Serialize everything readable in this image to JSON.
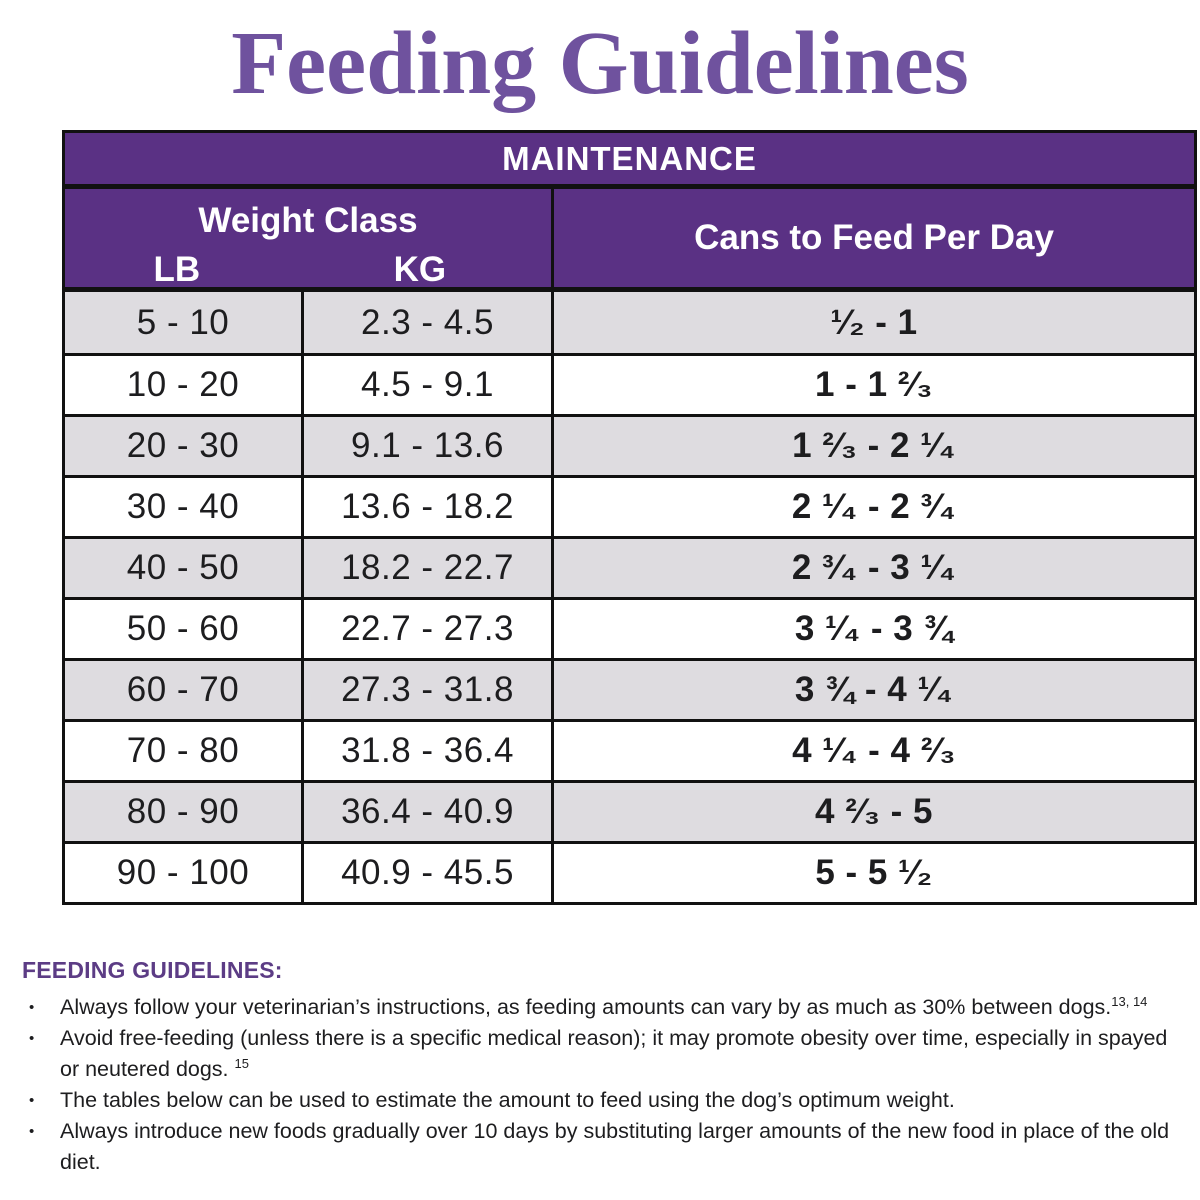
{
  "page_title": "Feeding Guidelines",
  "colors": {
    "brand_purple": "#5a3184",
    "title_purple": "#6f529e",
    "footer_heading_purple": "#5c3c85",
    "row_alt_gray": "#dedce0",
    "border_black": "#111111",
    "header_text": "#ffffff",
    "body_text": "#1d1d1f"
  },
  "table": {
    "maintenance_header": "MAINTENANCE",
    "weight_class_header": "Weight Class",
    "lb_header": "LB",
    "kg_header": "KG",
    "cans_header": "Cans to Feed Per Day",
    "rows": [
      {
        "lb": "5 - 10",
        "kg": "2.3 - 4.5",
        "cans": "¹⁄₂ - 1"
      },
      {
        "lb": "10 - 20",
        "kg": "4.5 - 9.1",
        "cans": "1 - 1 ²⁄₃"
      },
      {
        "lb": "20 - 30",
        "kg": "9.1 - 13.6",
        "cans": "1 ²⁄₃ - 2 ¹⁄₄"
      },
      {
        "lb": "30 - 40",
        "kg": "13.6 - 18.2",
        "cans": "2 ¹⁄₄ - 2 ³⁄₄"
      },
      {
        "lb": "40 - 50",
        "kg": "18.2 - 22.7",
        "cans": "2 ³⁄₄ - 3 ¹⁄₄"
      },
      {
        "lb": "50 - 60",
        "kg": "22.7 - 27.3",
        "cans": "3 ¹⁄₄ - 3 ¾"
      },
      {
        "lb": "60 - 70",
        "kg": "27.3 - 31.8",
        "cans": "3 ¾ - 4 ¹⁄₄"
      },
      {
        "lb": "70 - 80",
        "kg": "31.8 - 36.4",
        "cans": "4 ¹⁄₄ - 4 ²⁄₃"
      },
      {
        "lb": "80 - 90",
        "kg": "36.4 - 40.9",
        "cans": "4 ²⁄₃ - 5"
      },
      {
        "lb": "90 - 100",
        "kg": "40.9 - 45.5",
        "cans": "5 - 5 ¹⁄₂"
      }
    ]
  },
  "footer": {
    "heading": "FEEDING GUIDELINES:",
    "bullet_glyph": "•",
    "bullets": [
      {
        "text": "Always follow your veterinarian’s instructions, as feeding amounts can vary by as much as 30% between dogs.",
        "sup": "13, 14"
      },
      {
        "text": "Avoid free-feeding (unless there is a specific medical reason); it may promote obesity over time, especially in spayed or neutered dogs. ",
        "sup": "15"
      },
      {
        "text": "The tables below can be used to estimate the amount to feed using the dog’s optimum weight.",
        "sup": ""
      },
      {
        "text": "Always introduce new foods gradually over 10 days by substituting larger amounts of the new food in place of the old diet.",
        "sup": ""
      }
    ]
  }
}
